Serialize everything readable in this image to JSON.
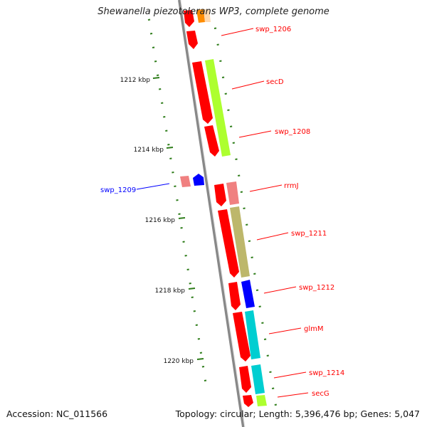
{
  "title": "Shewanella piezotolerans WP3, complete genome",
  "footer": {
    "accession": "Accession: NC_011566",
    "info": "Topology: circular; Length: 5,396,476 bp; Genes: 5,047"
  },
  "colors": {
    "backbone": "#888888",
    "cds": "#ff0000",
    "label_forward": "#ff0000",
    "label_reverse": "#0000ff",
    "gc_tick": "#2e7d1a"
  },
  "scale_labels": [
    "1212 kbp",
    "1214 kbp",
    "1216 kbp",
    "1218 kbp",
    "1220 kbp"
  ],
  "genes": [
    {
      "name": "swp_1206",
      "strand": "+",
      "class_color": "#ff8c00",
      "shade_color": "#ffd9b0"
    },
    {
      "name": "secD",
      "strand": "+",
      "class_color": "#adff2f"
    },
    {
      "name": "swp_1208",
      "strand": "+",
      "class_color": "#adff2f"
    },
    {
      "name": "swp_1209",
      "strand": "-",
      "class_color": "#0000ff",
      "shade_color": "#f08080"
    },
    {
      "name": "rrmJ",
      "strand": "+",
      "class_color": "#f08080"
    },
    {
      "name": "swp_1211",
      "strand": "+",
      "class_color": "#bdb76b"
    },
    {
      "name": "swp_1212",
      "strand": "+",
      "class_color": "#0000ff"
    },
    {
      "name": "glmM",
      "strand": "+",
      "class_color": "#00ced1"
    },
    {
      "name": "swp_1214",
      "strand": "+",
      "class_color": "#00ced1"
    },
    {
      "name": "secG",
      "strand": "+",
      "class_color": "#adff2f"
    }
  ]
}
